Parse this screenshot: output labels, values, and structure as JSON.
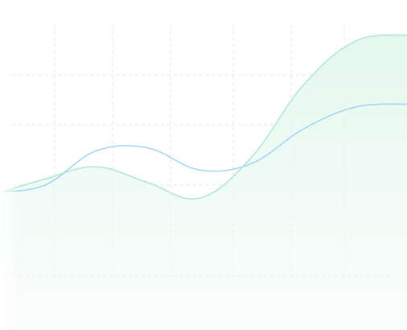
{
  "chart_data": {
    "type": "area",
    "title": "",
    "xlabel": "",
    "ylabel": "",
    "grid": true,
    "legend": "none",
    "x": [
      0,
      1,
      2,
      3,
      4,
      5,
      6,
      7,
      8
    ],
    "xlim": [
      0,
      8
    ],
    "ylim": [
      0,
      100
    ],
    "series": [
      {
        "kind": "area",
        "color": "#a8e6cf",
        "values": [
          43,
          48,
          52,
          47,
          42,
          55,
          78,
          92,
          94
        ]
      },
      {
        "kind": "line",
        "color": "#9fd6f0",
        "values": [
          44,
          46,
          57,
          58,
          51,
          53,
          64,
          71,
          72
        ]
      }
    ]
  }
}
